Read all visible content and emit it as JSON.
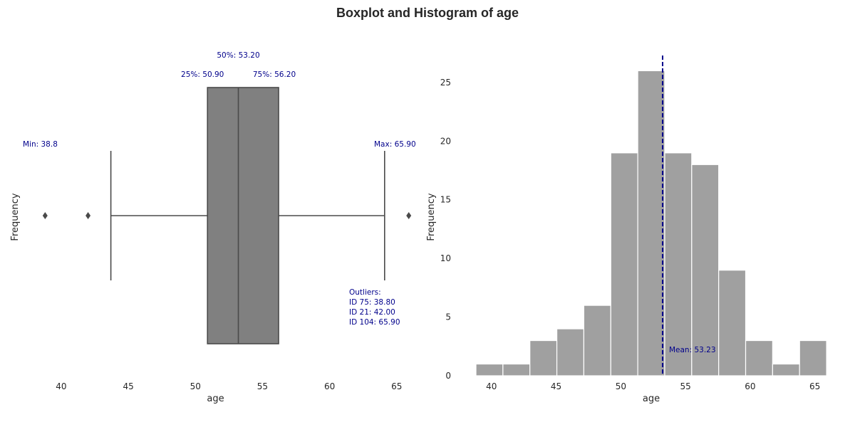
{
  "title": "Boxplot and Histogram of age",
  "chart_data": [
    {
      "type": "box",
      "xlabel": "age",
      "ylabel": "Frequency",
      "xlim": [
        36.5,
        66.5
      ],
      "xticks": [
        40,
        45,
        50,
        55,
        60,
        65
      ],
      "grid": false,
      "stats": {
        "whisker_low": 43.7,
        "q1": 50.9,
        "median": 53.2,
        "q3": 56.2,
        "whisker_high": 64.1
      },
      "outlier_values": [
        38.8,
        42.0,
        65.9
      ],
      "box_color": "#808080",
      "annotations": {
        "median": "50%: 53.20",
        "q1": "25%: 50.90",
        "q3": "75%: 56.20",
        "min": "Min: 38.8",
        "max": "Max: 65.90",
        "outliers_title": "Outliers:",
        "outliers": [
          "ID 75: 38.80",
          "ID 21: 42.00",
          "ID 104: 65.90"
        ]
      }
    },
    {
      "type": "histogram",
      "xlabel": "age",
      "ylabel": "Frequency",
      "xlim": [
        38.8,
        65.9
      ],
      "ylim": [
        0,
        27.3
      ],
      "xticks": [
        40,
        45,
        50,
        55,
        60,
        65
      ],
      "yticks": [
        0,
        5,
        10,
        15,
        20,
        25
      ],
      "grid": false,
      "bin_edges": [
        38.8,
        40.885,
        42.97,
        45.055,
        47.14,
        49.225,
        51.31,
        53.395,
        55.48,
        57.565,
        59.65,
        61.735,
        63.82,
        65.905
      ],
      "counts": [
        1,
        1,
        3,
        4,
        6,
        19,
        26,
        19,
        18,
        9,
        3,
        1,
        3
      ],
      "bar_color": "#a0a0a0",
      "mean": 53.23,
      "mean_label": "Mean: 53.23",
      "mean_color": "#00008b"
    }
  ]
}
